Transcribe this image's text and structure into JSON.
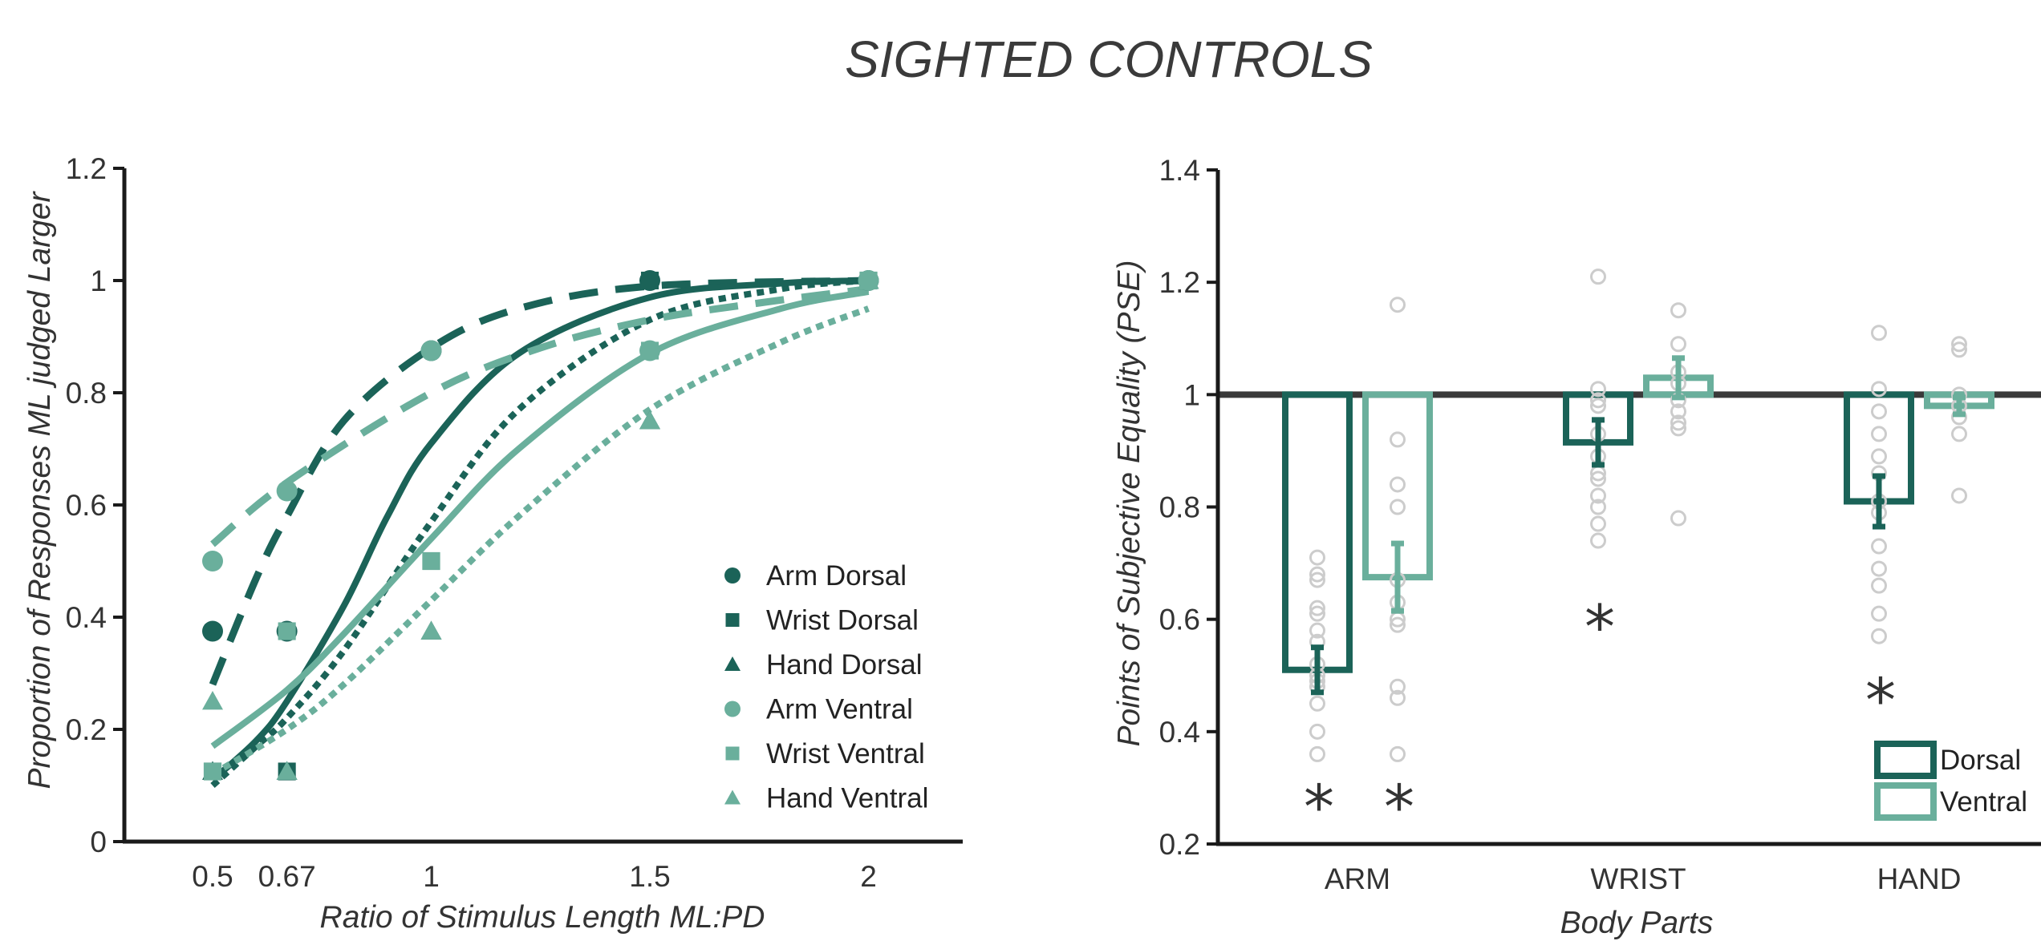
{
  "title": "SIGHTED CONTROLS",
  "colors": {
    "dorsal": "#1b6358",
    "ventral": "#6aaf9c",
    "axis": "#1a1a1a",
    "points": "#cccccc",
    "star": "#333333"
  },
  "chart_data": [
    {
      "type": "line",
      "xlabel": "Ratio of Stimulus Length ML:PD",
      "ylabel": "Proportion of Responses ML judged Larger",
      "xlim": [
        0.4,
        2.2
      ],
      "ylim": [
        0,
        1.2
      ],
      "xticks": [
        0.5,
        0.67,
        1,
        1.5,
        2
      ],
      "xtick_labels": [
        "0.5",
        "0.67",
        "1",
        "1.5",
        "2"
      ],
      "yticks": [
        0,
        0.2,
        0.4,
        0.6,
        0.8,
        1,
        1.2
      ],
      "ytick_labels": [
        "0",
        "0.2",
        "0.4",
        "0.6",
        "0.8",
        "1",
        "1.2"
      ],
      "legend_position": "bottom-right",
      "x": [
        0.5,
        0.67,
        1,
        1.5,
        2
      ],
      "series": [
        {
          "name": "Arm Dorsal",
          "group": "dorsal",
          "marker": "circle",
          "values": [
            0.375,
            0.375,
            0.875,
            1.0,
            1.0
          ],
          "fit": {
            "style": "dashed",
            "points": [
              [
                0.5,
                0.28
              ],
              [
                0.6,
                0.47
              ],
              [
                0.67,
                0.58
              ],
              [
                0.8,
                0.75
              ],
              [
                1.0,
                0.88
              ],
              [
                1.2,
                0.95
              ],
              [
                1.5,
                0.99
              ],
              [
                2.0,
                1.0
              ]
            ]
          }
        },
        {
          "name": "Wrist Dorsal",
          "group": "dorsal",
          "marker": "square",
          "values": [
            0.125,
            0.125,
            0.5,
            1.0,
            1.0
          ],
          "fit": {
            "style": "dotted",
            "points": [
              [
                0.5,
                0.1
              ],
              [
                0.6,
                0.17
              ],
              [
                0.67,
                0.22
              ],
              [
                0.8,
                0.34
              ],
              [
                1.0,
                0.57
              ],
              [
                1.2,
                0.77
              ],
              [
                1.5,
                0.93
              ],
              [
                1.8,
                0.985
              ],
              [
                2.0,
                1.0
              ]
            ]
          }
        },
        {
          "name": "Hand Dorsal",
          "group": "dorsal",
          "marker": "triangle",
          "values": [
            0.125,
            0.125,
            0.375,
            0.75,
            1.0
          ],
          "fit": {
            "style": "solid",
            "points": [
              [
                0.5,
                0.11
              ],
              [
                0.6,
                0.18
              ],
              [
                0.67,
                0.25
              ],
              [
                0.8,
                0.42
              ],
              [
                0.9,
                0.58
              ],
              [
                1.0,
                0.71
              ],
              [
                1.2,
                0.87
              ],
              [
                1.5,
                0.97
              ],
              [
                1.8,
                0.995
              ],
              [
                2.0,
                1.0
              ]
            ]
          }
        },
        {
          "name": "Arm Ventral",
          "group": "ventral",
          "marker": "circle",
          "values": [
            0.5,
            0.625,
            0.875,
            0.875,
            1.0
          ],
          "fit": {
            "style": "dashed",
            "points": [
              [
                0.5,
                0.53
              ],
              [
                0.67,
                0.64
              ],
              [
                1.0,
                0.8
              ],
              [
                1.25,
                0.88
              ],
              [
                1.5,
                0.93
              ],
              [
                1.75,
                0.96
              ],
              [
                2.0,
                0.985
              ]
            ]
          }
        },
        {
          "name": "Wrist Ventral",
          "group": "ventral",
          "marker": "square",
          "values": [
            0.125,
            0.375,
            0.5,
            0.875,
            1.0
          ],
          "fit": {
            "style": "solid",
            "points": [
              [
                0.5,
                0.17
              ],
              [
                0.67,
                0.27
              ],
              [
                0.8,
                0.37
              ],
              [
                1.0,
                0.54
              ],
              [
                1.2,
                0.7
              ],
              [
                1.5,
                0.87
              ],
              [
                1.8,
                0.95
              ],
              [
                2.0,
                0.98
              ]
            ]
          }
        },
        {
          "name": "Hand Ventral",
          "group": "ventral",
          "marker": "triangle",
          "values": [
            0.25,
            0.125,
            0.375,
            0.75,
            1.0
          ],
          "fit": {
            "style": "dotted",
            "points": [
              [
                0.5,
                0.12
              ],
              [
                0.67,
                0.2
              ],
              [
                0.8,
                0.28
              ],
              [
                1.0,
                0.43
              ],
              [
                1.2,
                0.58
              ],
              [
                1.5,
                0.77
              ],
              [
                1.8,
                0.89
              ],
              [
                2.0,
                0.95
              ]
            ]
          }
        }
      ]
    },
    {
      "type": "bar",
      "xlabel": "Body Parts",
      "ylabel": "Points of Subjective Equality (PSE)",
      "categories": [
        "ARM",
        "WRIST",
        "HAND"
      ],
      "ylim": [
        0.2,
        1.4
      ],
      "yticks": [
        0.2,
        0.4,
        0.6,
        0.8,
        1,
        1.2,
        1.4
      ],
      "ytick_labels": [
        "0.2",
        "0.4",
        "0.6",
        "0.8",
        "1",
        "1.2",
        "1.4"
      ],
      "baseline": 1.0,
      "reference_line": 1.0,
      "legend_position": "bottom-right",
      "significance_marker": "*",
      "series": [
        {
          "name": "Dorsal",
          "values": [
            0.51,
            0.915,
            0.81
          ],
          "error": [
            0.04,
            0.04,
            0.045
          ],
          "significant": [
            true,
            true,
            true
          ],
          "star_y": [
            0.28,
            0.6,
            0.47
          ],
          "individual_points": [
            [
              0.71,
              0.68,
              0.67,
              0.62,
              0.61,
              0.58,
              0.56,
              0.52,
              0.5,
              0.49,
              0.48,
              0.45,
              0.4,
              0.36
            ],
            [
              1.21,
              1.01,
              0.99,
              0.98,
              0.93,
              0.89,
              0.86,
              0.85,
              0.82,
              0.8,
              0.77,
              0.74
            ],
            [
              1.11,
              1.01,
              0.97,
              0.93,
              0.89,
              0.86,
              0.81,
              0.79,
              0.73,
              0.69,
              0.66,
              0.61,
              0.57
            ]
          ]
        },
        {
          "name": "Ventral",
          "values": [
            0.675,
            1.03,
            0.98
          ],
          "error": [
            0.06,
            0.035,
            0.015
          ],
          "significant": [
            true,
            false,
            false
          ],
          "star_y": [
            0.28,
            null,
            null
          ],
          "individual_points": [
            [
              1.16,
              0.92,
              0.84,
              0.8,
              0.67,
              0.63,
              0.6,
              0.59,
              0.48,
              0.46,
              0.36
            ],
            [
              1.15,
              1.09,
              1.04,
              1.02,
              0.99,
              0.97,
              0.95,
              0.94,
              0.78
            ],
            [
              1.09,
              1.08,
              1.0,
              0.98,
              0.96,
              0.93,
              0.82
            ]
          ]
        }
      ]
    }
  ]
}
